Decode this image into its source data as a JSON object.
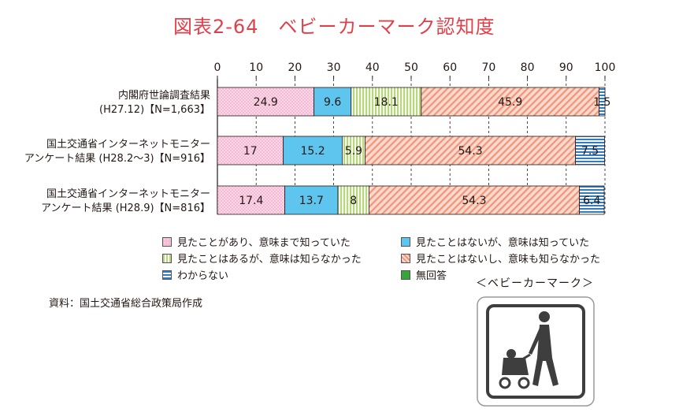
{
  "title": "図表2-64　ベビーカーマーク認知度",
  "source": "資料：国土交通省総合政策局作成",
  "mark_caption": "＜ベビーカーマーク＞",
  "colors": {
    "title": "#e0404a",
    "seen_know": "#f6bcd6",
    "notseen_know": "#5ec6ee",
    "seen_notknow": "#d6e9a0",
    "notseen_notknow": "#f7c2b0",
    "dontknow": "#ffffff",
    "noanswer": "#36a63c"
  },
  "legend": [
    {
      "key": "seen_know",
      "label": "見たことがあり、意味まで知っていた"
    },
    {
      "key": "notseen_know",
      "label": "見たことはないが、意味は知っていた"
    },
    {
      "key": "seen_notknow",
      "label": "見たことはあるが、意味は知らなかった"
    },
    {
      "key": "notseen_notknow",
      "label": "見たことはないし、意味も知らなかった"
    },
    {
      "key": "dontknow",
      "label": "わからない"
    },
    {
      "key": "noanswer",
      "label": "無回答"
    }
  ],
  "chart_data": {
    "type": "bar",
    "orientation": "horizontal",
    "stacked": true,
    "xlim": [
      0,
      100
    ],
    "x_ticks": [
      0,
      10,
      20,
      30,
      40,
      50,
      60,
      70,
      80,
      90,
      100
    ],
    "categories": [
      {
        "line1": "内閣府世論調査結果",
        "line2": "(H27.12)【N=1,663】"
      },
      {
        "line1": "国土交通省インターネットモニター",
        "line2": "アンケート結果 (H28.2～3)【N=916】"
      },
      {
        "line1": "国土交通省インターネットモニター",
        "line2": "アンケート結果 (H28.9)【N=816】"
      }
    ],
    "series": [
      {
        "name": "見たことがあり、意味まで知っていた",
        "key": "seen_know",
        "values": [
          24.9,
          17,
          17.4
        ],
        "labels": [
          "24.9",
          "17",
          "17.4"
        ]
      },
      {
        "name": "見たことはないが、意味は知っていた",
        "key": "notseen_know",
        "values": [
          9.6,
          15.2,
          13.7
        ],
        "labels": [
          "9.6",
          "15.2",
          "13.7"
        ]
      },
      {
        "name": "見たことはあるが、意味は知らなかった",
        "key": "seen_notknow",
        "values": [
          18.1,
          5.9,
          8
        ],
        "labels": [
          "18.1",
          "5.9",
          "8"
        ]
      },
      {
        "name": "見たことはないし、意味も知らなかった",
        "key": "notseen_notknow",
        "values": [
          45.9,
          54.3,
          54.3
        ],
        "labels": [
          "45.9",
          "54.3",
          "54.3"
        ]
      },
      {
        "name": "わからない",
        "key": "dontknow",
        "values": [
          1.5,
          7.5,
          6.4
        ],
        "labels": [
          "1.5",
          "7.5",
          "6.4"
        ]
      },
      {
        "name": "無回答",
        "key": "noanswer",
        "values": [
          0,
          0,
          0
        ],
        "labels": [
          "",
          "",
          ""
        ]
      }
    ],
    "grid": true,
    "legend_position": "bottom"
  }
}
